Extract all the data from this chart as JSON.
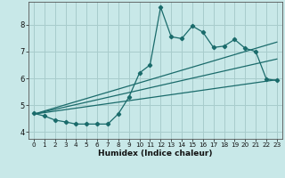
{
  "xlabel": "Humidex (Indice chaleur)",
  "background_color": "#c8e8e8",
  "grid_color": "#a8cccc",
  "line_color": "#1a6b6b",
  "xlim": [
    -0.5,
    23.5
  ],
  "ylim": [
    3.75,
    8.85
  ],
  "yticks": [
    4,
    5,
    6,
    7,
    8
  ],
  "xticks": [
    0,
    1,
    2,
    3,
    4,
    5,
    6,
    7,
    8,
    9,
    10,
    11,
    12,
    13,
    14,
    15,
    16,
    17,
    18,
    19,
    20,
    21,
    22,
    23
  ],
  "s1_x": [
    0,
    1,
    2,
    3,
    4,
    5,
    6,
    7,
    8,
    9,
    10,
    11,
    12,
    13,
    14,
    15,
    16,
    17,
    18,
    19,
    20,
    21,
    22,
    23
  ],
  "s1_y": [
    4.7,
    4.6,
    4.45,
    4.38,
    4.3,
    4.3,
    4.3,
    4.3,
    4.68,
    5.3,
    6.2,
    6.5,
    8.65,
    7.55,
    7.48,
    7.95,
    7.72,
    7.15,
    7.2,
    7.45,
    7.12,
    7.0,
    5.98,
    5.92
  ],
  "trend1_x": [
    0,
    23
  ],
  "trend1_y": [
    4.67,
    5.95
  ],
  "trend2_x": [
    0,
    23
  ],
  "trend2_y": [
    4.67,
    6.72
  ],
  "trend3_x": [
    0,
    23
  ],
  "trend3_y": [
    4.67,
    7.35
  ]
}
